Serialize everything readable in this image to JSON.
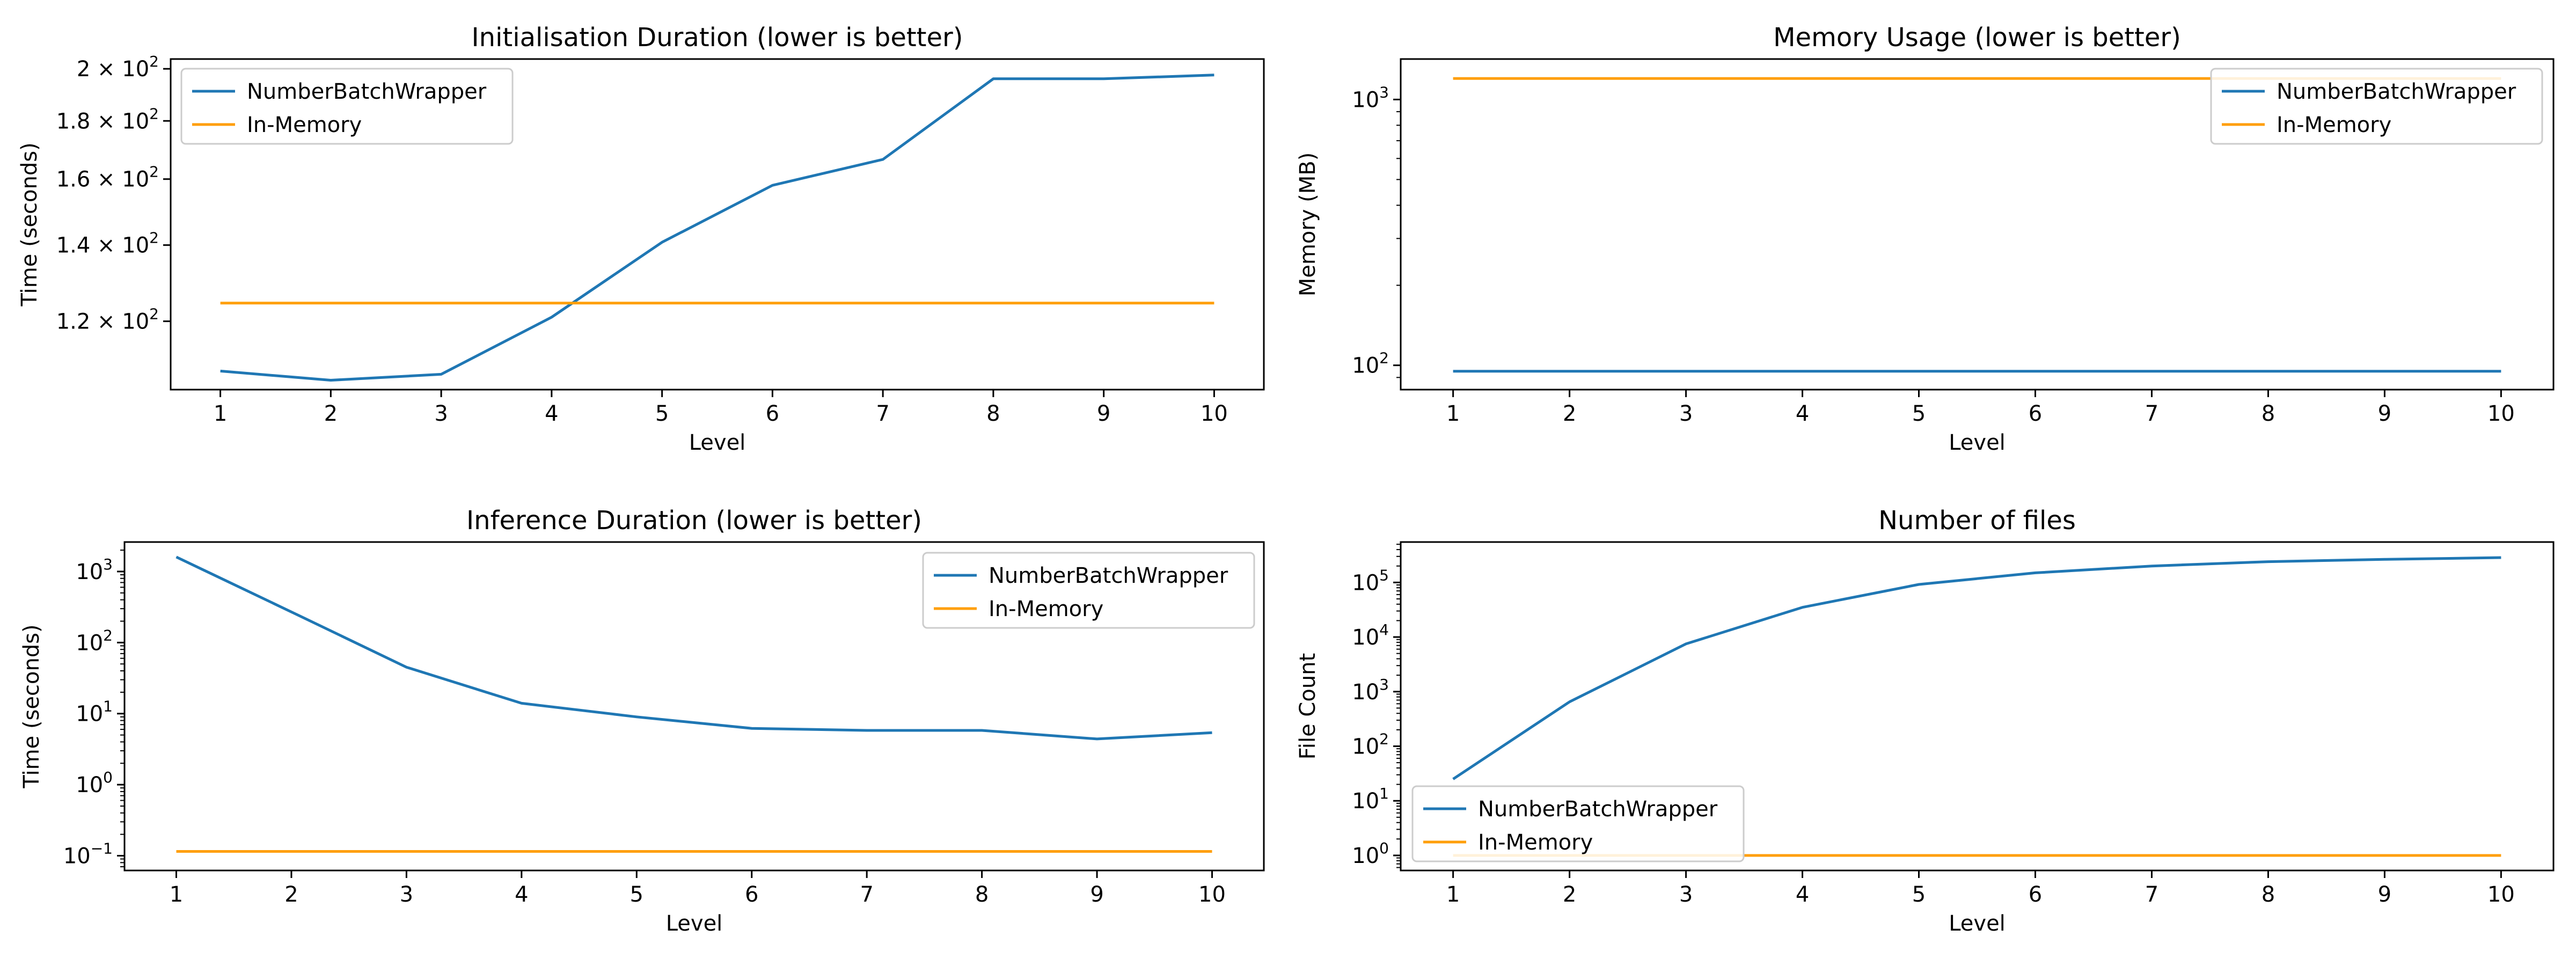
{
  "colors": {
    "series1": "#1f77b4",
    "series2": "#ff9f0a",
    "axes": "#000000",
    "legend_border": "#cccccc"
  },
  "chart_data": [
    {
      "type": "line",
      "title": "Initialisation Duration (lower is better)",
      "xlabel": "Level",
      "ylabel": "Time (seconds)",
      "yscale": "log",
      "xlim": [
        0.55,
        10.45
      ],
      "ylim": [
        104.5,
        204
      ],
      "grid": false,
      "legend_position": "upper left",
      "x": [
        1,
        2,
        3,
        4,
        5,
        6,
        7,
        8,
        9,
        10
      ],
      "xticks": [
        "1",
        "2",
        "3",
        "4",
        "5",
        "6",
        "7",
        "8",
        "9",
        "10"
      ],
      "yticks": [
        {
          "value": 120,
          "base": "1.2 × 10",
          "exp": "2"
        },
        {
          "value": 140,
          "base": "1.4 × 10",
          "exp": "2"
        },
        {
          "value": 160,
          "base": "1.6 × 10",
          "exp": "2"
        },
        {
          "value": 180,
          "base": "1.8 × 10",
          "exp": "2"
        },
        {
          "value": 200,
          "base": "2 × 10",
          "exp": "2"
        }
      ],
      "series": [
        {
          "name": "NumberBatchWrapper",
          "color": "#1f77b4",
          "values": [
            108.5,
            106.5,
            107.8,
            121,
            140.8,
            158,
            166.5,
            196,
            196,
            197.5
          ]
        },
        {
          "name": "In-Memory",
          "color": "#ff9f0a",
          "values": [
            124.5,
            124.5,
            124.5,
            124.5,
            124.5,
            124.5,
            124.5,
            124.5,
            124.5,
            124.5
          ]
        }
      ]
    },
    {
      "type": "line",
      "title": "Memory Usage (lower is better)",
      "xlabel": "Level",
      "ylabel": "Memory (MB)",
      "yscale": "log",
      "xlim": [
        0.55,
        10.45
      ],
      "ylim": [
        81,
        1420
      ],
      "grid": false,
      "legend_position": "upper right",
      "x": [
        1,
        2,
        3,
        4,
        5,
        6,
        7,
        8,
        9,
        10
      ],
      "xticks": [
        "1",
        "2",
        "3",
        "4",
        "5",
        "6",
        "7",
        "8",
        "9",
        "10"
      ],
      "yticks": [
        {
          "value": 100,
          "base": "10",
          "exp": "2"
        },
        {
          "value": 1000,
          "base": "10",
          "exp": "3"
        }
      ],
      "series": [
        {
          "name": "NumberBatchWrapper",
          "color": "#1f77b4",
          "values": [
            95,
            95,
            95,
            95,
            95,
            95,
            95,
            95,
            95,
            95
          ]
        },
        {
          "name": "In-Memory",
          "color": "#ff9f0a",
          "values": [
            1200,
            1200,
            1200,
            1200,
            1200,
            1200,
            1200,
            1200,
            1200,
            1200
          ]
        }
      ]
    },
    {
      "type": "line",
      "title": "Inference Duration (lower is better)",
      "xlabel": "Level",
      "ylabel": "Time (seconds)",
      "yscale": "log",
      "xlim": [
        0.55,
        10.45
      ],
      "ylim": [
        0.062,
        2600
      ],
      "grid": false,
      "legend_position": "upper right",
      "x": [
        1,
        2,
        3,
        4,
        5,
        6,
        7,
        8,
        9,
        10
      ],
      "xticks": [
        "1",
        "2",
        "3",
        "4",
        "5",
        "6",
        "7",
        "8",
        "9",
        "10"
      ],
      "yticks": [
        {
          "value": 0.1,
          "base": "10",
          "exp": "−1"
        },
        {
          "value": 1,
          "base": "10",
          "exp": "0"
        },
        {
          "value": 10,
          "base": "10",
          "exp": "1"
        },
        {
          "value": 100,
          "base": "10",
          "exp": "2"
        },
        {
          "value": 1000,
          "base": "10",
          "exp": "3"
        }
      ],
      "series": [
        {
          "name": "NumberBatchWrapper",
          "color": "#1f77b4",
          "values": [
            1600,
            270,
            45,
            14,
            9,
            6.2,
            5.8,
            5.8,
            4.4,
            5.4
          ]
        },
        {
          "name": "In-Memory",
          "color": "#ff9f0a",
          "values": [
            0.115,
            0.115,
            0.115,
            0.115,
            0.115,
            0.115,
            0.115,
            0.115,
            0.115,
            0.115
          ]
        }
      ]
    },
    {
      "type": "line",
      "title": "Number of files",
      "xlabel": "Level",
      "ylabel": "File Count",
      "yscale": "log",
      "xlim": [
        0.55,
        10.45
      ],
      "ylim": [
        0.53,
        550000
      ],
      "grid": false,
      "legend_position": "lower left",
      "x": [
        1,
        2,
        3,
        4,
        5,
        6,
        7,
        8,
        9,
        10
      ],
      "xticks": [
        "1",
        "2",
        "3",
        "4",
        "5",
        "6",
        "7",
        "8",
        "9",
        "10"
      ],
      "yticks": [
        {
          "value": 1,
          "base": "10",
          "exp": "0"
        },
        {
          "value": 10,
          "base": "10",
          "exp": "1"
        },
        {
          "value": 100,
          "base": "10",
          "exp": "2"
        },
        {
          "value": 1000,
          "base": "10",
          "exp": "3"
        },
        {
          "value": 10000,
          "base": "10",
          "exp": "4"
        },
        {
          "value": 100000,
          "base": "10",
          "exp": "5"
        }
      ],
      "series": [
        {
          "name": "NumberBatchWrapper",
          "color": "#1f77b4",
          "values": [
            25,
            650,
            7500,
            35000,
            92000,
            150000,
            200000,
            240000,
            265000,
            285000
          ]
        },
        {
          "name": "In-Memory",
          "color": "#ff9f0a",
          "values": [
            1,
            1,
            1,
            1,
            1,
            1,
            1,
            1,
            1,
            1
          ]
        }
      ]
    }
  ]
}
